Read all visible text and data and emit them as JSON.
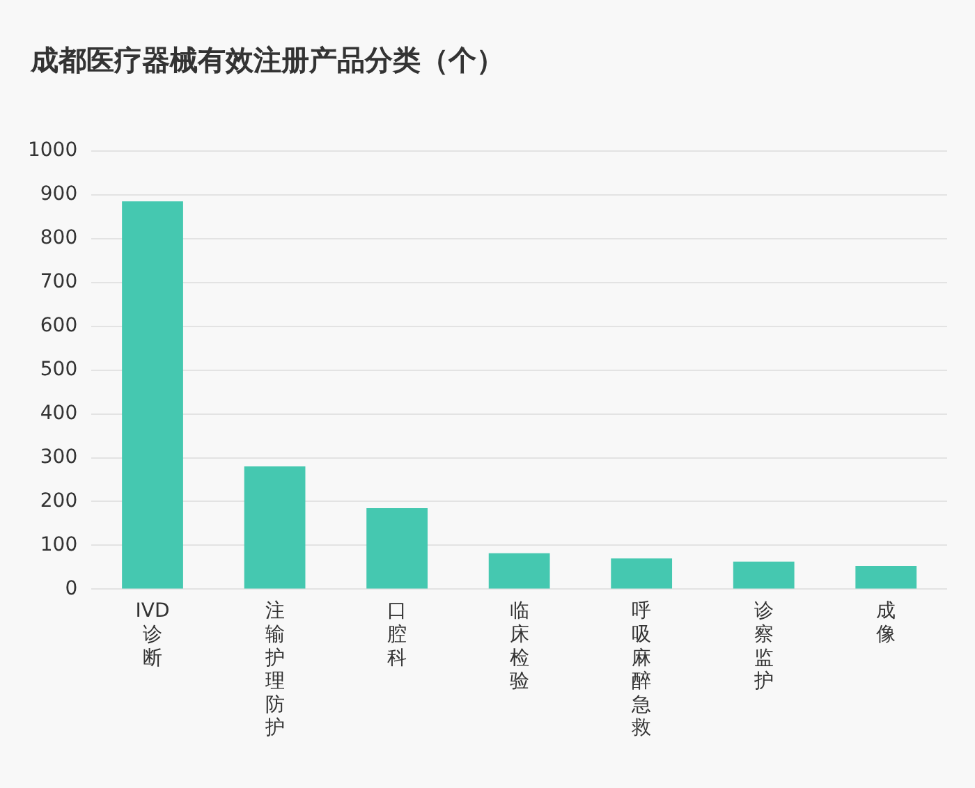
{
  "chart_data": {
    "type": "bar",
    "title": "成都医疗器械有效注册产品分类（个）",
    "categories": [
      "IVD 诊断",
      "注输护理防护",
      "口腔科",
      "临床检验",
      "呼吸麻醉急救",
      "诊察监护",
      "成像"
    ],
    "values": [
      885,
      280,
      185,
      82,
      70,
      63,
      53
    ],
    "color": "#45c8b0",
    "ylim": [
      0,
      1000
    ],
    "yticks": [
      0,
      100,
      200,
      300,
      400,
      500,
      600,
      700,
      800,
      900,
      1000
    ],
    "grid": "y"
  }
}
